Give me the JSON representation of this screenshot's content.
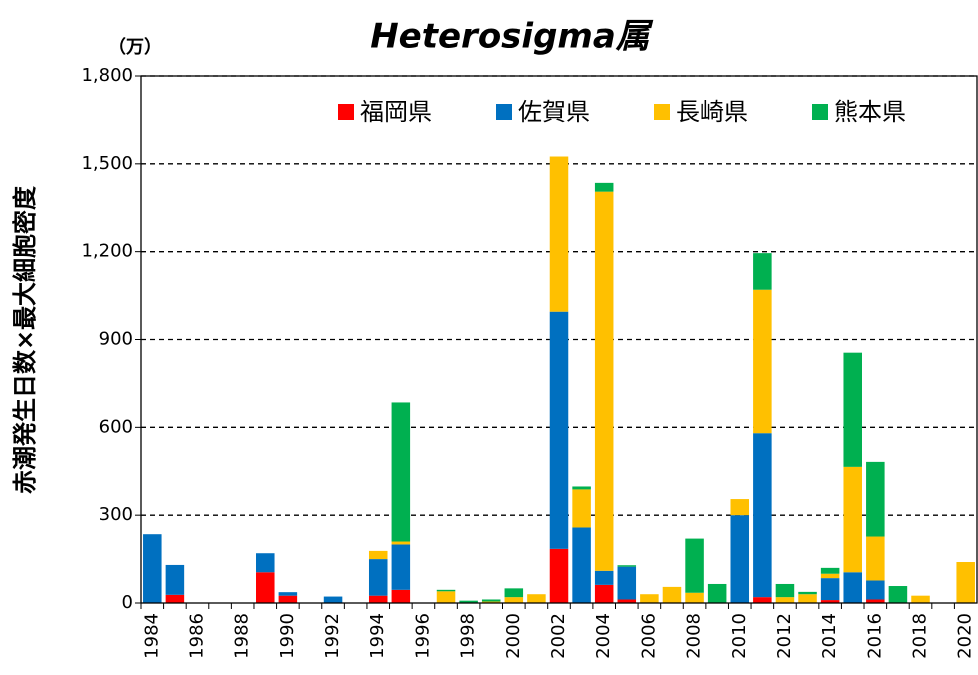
{
  "chart_data": {
    "type": "stacked_bar",
    "title": "Heterosigma属",
    "y_unit": "（万）",
    "y_label": "赤潮発生日数×最大細胞密度",
    "categories": [
      "1984",
      null,
      "1986",
      null,
      "1988",
      null,
      "1990",
      null,
      "1992",
      null,
      "1994",
      null,
      "1996",
      null,
      "1998",
      null,
      "2000",
      null,
      "2002",
      null,
      "2004",
      null,
      "2006",
      null,
      "2008",
      null,
      "2010",
      null,
      "2012",
      null,
      "2014",
      null,
      "2016",
      null,
      "2018",
      null,
      "2020"
    ],
    "series": [
      {
        "name": "福岡県",
        "color": "#ff0000",
        "values": [
          0,
          28,
          0,
          0,
          0,
          105,
          25,
          0,
          0,
          0,
          25,
          45,
          0,
          0,
          0,
          0,
          0,
          0,
          185,
          0,
          62,
          12,
          0,
          0,
          0,
          0,
          0,
          20,
          0,
          0,
          10,
          0,
          12,
          0,
          0,
          0,
          0
        ]
      },
      {
        "name": "佐賀県",
        "color": "#0070c0",
        "values": [
          235,
          102,
          0,
          0,
          0,
          65,
          12,
          0,
          22,
          0,
          125,
          155,
          0,
          0,
          0,
          0,
          0,
          0,
          810,
          258,
          48,
          112,
          0,
          0,
          0,
          0,
          300,
          560,
          0,
          0,
          75,
          105,
          65,
          0,
          0,
          0,
          0
        ]
      },
      {
        "name": "長崎県",
        "color": "#ffc000",
        "values": [
          0,
          0,
          0,
          0,
          0,
          0,
          0,
          0,
          0,
          0,
          28,
          10,
          0,
          40,
          0,
          5,
          20,
          30,
          530,
          130,
          1295,
          0,
          30,
          55,
          35,
          0,
          55,
          490,
          20,
          30,
          15,
          360,
          150,
          0,
          25,
          0,
          140
        ]
      },
      {
        "name": "熊本県",
        "color": "#00b050",
        "values": [
          0,
          0,
          0,
          0,
          0,
          0,
          0,
          0,
          0,
          0,
          0,
          475,
          0,
          5,
          8,
          7,
          30,
          0,
          0,
          10,
          30,
          5,
          0,
          0,
          185,
          65,
          0,
          125,
          45,
          8,
          20,
          390,
          255,
          58,
          0,
          0,
          0
        ]
      }
    ],
    "ylim": [
      0,
      1800
    ],
    "yticks": [
      0,
      300,
      600,
      900,
      {
        "value": 1200,
        "label": "1,200"
      },
      {
        "value": 1500,
        "label": "1,500"
      },
      {
        "value": 1800,
        "label": "1,800"
      }
    ],
    "grid": true,
    "legend": "top"
  }
}
